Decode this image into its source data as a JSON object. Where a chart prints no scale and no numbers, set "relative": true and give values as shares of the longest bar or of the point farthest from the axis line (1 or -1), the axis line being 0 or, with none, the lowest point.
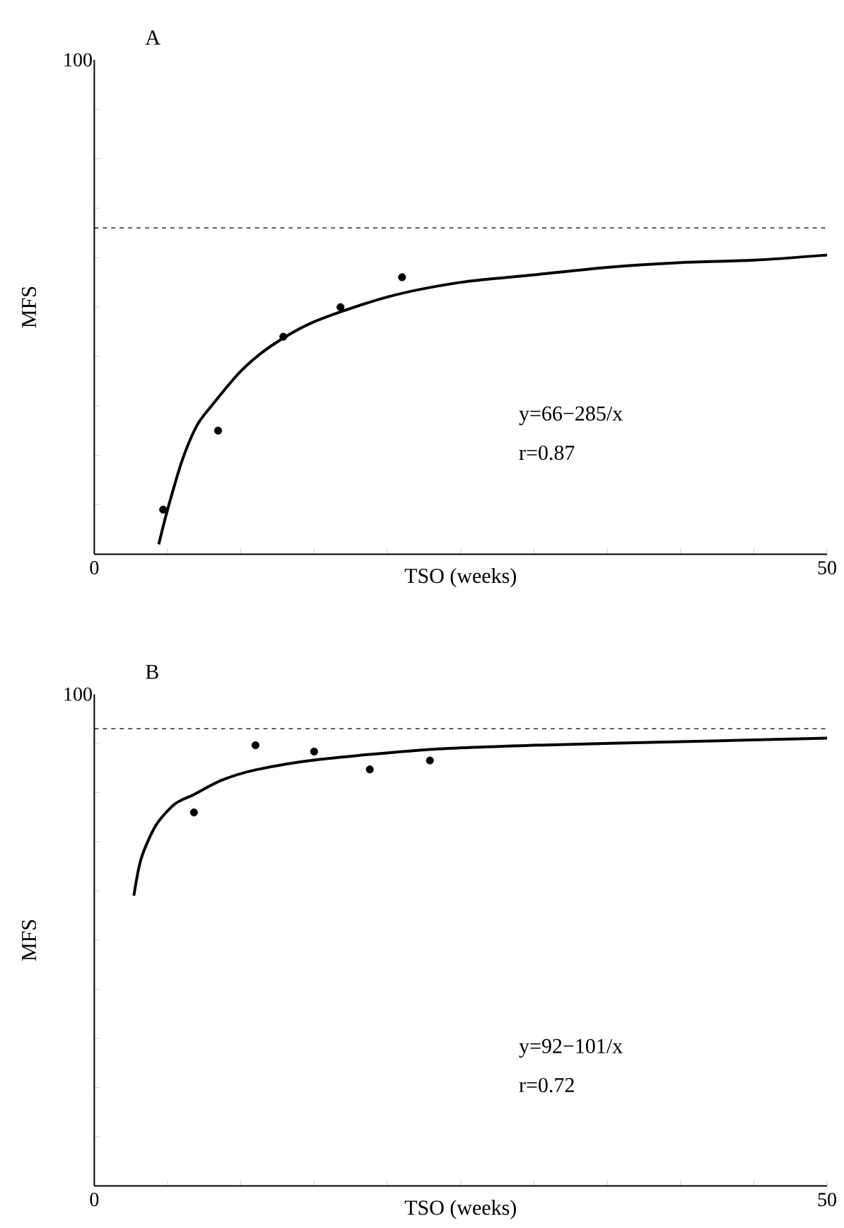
{
  "chart_data": [
    {
      "type": "scatter",
      "title": "A",
      "xlabel": "TSO (weeks)",
      "ylabel": "MFS",
      "relative": true,
      "xlim": [
        0,
        50
      ],
      "xticks": [
        0,
        {
          "value": 5,
          "label": null
        },
        {
          "value": 10,
          "label": null
        },
        {
          "value": 15,
          "label": null
        },
        {
          "value": 20,
          "label": null
        },
        {
          "value": 25,
          "label": null
        },
        {
          "value": 30,
          "label": null
        },
        {
          "value": 35,
          "label": null
        },
        {
          "value": 40,
          "label": null
        },
        {
          "value": 45,
          "label": null
        },
        50
      ],
      "series": [
        {
          "color": "#000000",
          "x": [
            4.7,
            8.45,
            12.9,
            16.8,
            21.0
          ],
          "values": [
            0.149,
            0.413,
            0.727,
            0.826,
            0.926
          ]
        },
        {
          "type": "line",
          "color": "#000000",
          "x": [
            4.4,
            5,
            6,
            7,
            8,
            10,
            12,
            15,
            20,
            25,
            30,
            35,
            40,
            45,
            50
          ],
          "values": [
            0.033,
            0.149,
            0.314,
            0.43,
            0.496,
            0.612,
            0.694,
            0.777,
            0.86,
            0.909,
            0.934,
            0.959,
            0.975,
            0.983,
            1
          ]
        }
      ],
      "ref_lines": [
        {
          "axis": "y",
          "value": 1.091,
          "line_style": "dashed"
        }
      ],
      "annotations": [
        "100",
        "y=66−285/x",
        "r=0.87"
      ]
    },
    {
      "type": "scatter",
      "title": "B",
      "xlabel": "TSO (weeks)",
      "ylabel": "MFS",
      "relative": true,
      "xlim": [
        0,
        50
      ],
      "xticks": [
        0,
        {
          "value": 5,
          "label": null
        },
        {
          "value": 10,
          "label": null
        },
        {
          "value": 15,
          "label": null
        },
        {
          "value": 20,
          "label": null
        },
        {
          "value": 25,
          "label": null
        },
        {
          "value": 30,
          "label": null
        },
        {
          "value": 35,
          "label": null
        },
        {
          "value": 40,
          "label": null
        },
        {
          "value": 45,
          "label": null
        },
        50
      ],
      "series": [
        {
          "color": "#000000",
          "x": [
            6.8,
            11.0,
            15.0,
            18.8,
            22.9
          ],
          "values": [
            0.834,
            0.984,
            0.97,
            0.93,
            0.95
          ]
        },
        {
          "type": "line",
          "color": "#000000",
          "x": [
            2.7,
            3.2,
            4.2,
            5.5,
            6.8,
            8.7,
            11,
            15,
            22.6,
            30,
            40,
            50
          ],
          "values": [
            0.648,
            0.731,
            0.805,
            0.853,
            0.874,
            0.906,
            0.929,
            0.951,
            0.974,
            0.984,
            0.992,
            1
          ]
        }
      ],
      "ref_lines": [
        {
          "axis": "y",
          "value": 1.021,
          "line_style": "dashed"
        }
      ],
      "annotations": [
        "100",
        "y=92−101/x",
        "r=0.72"
      ]
    }
  ]
}
